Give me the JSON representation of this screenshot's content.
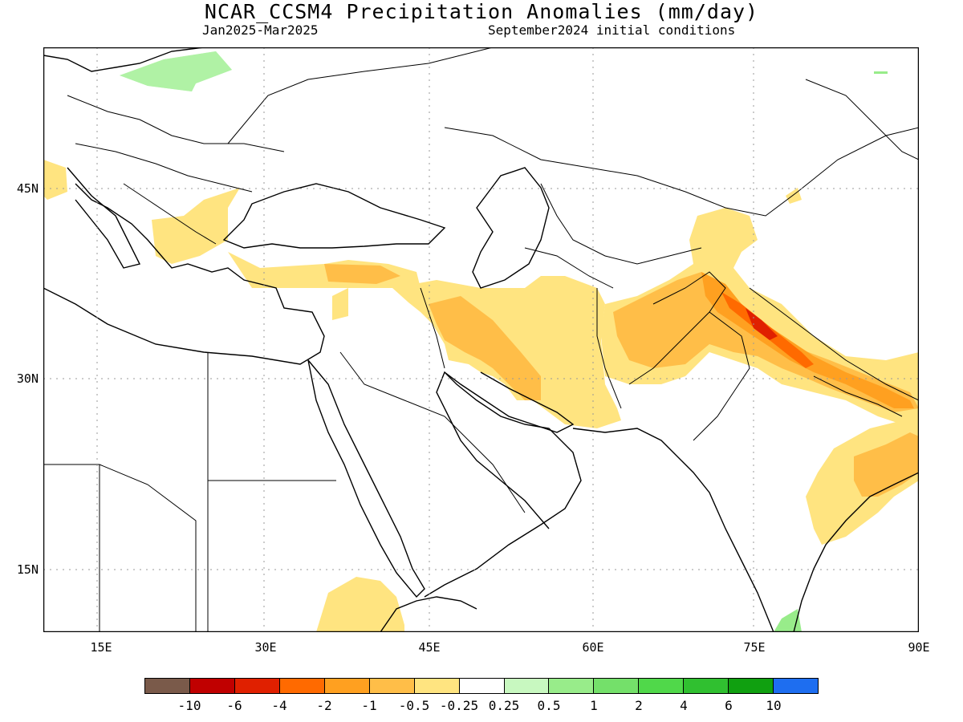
{
  "title": "NCAR_CCSM4 Precipitation Anomalies (mm/day)",
  "subtitle_left": "Jan2025-Mar2025",
  "subtitle_right": "September2024 initial conditions",
  "lat_labels": [
    "45N",
    "30N",
    "15N"
  ],
  "lon_labels": [
    "15E",
    "30E",
    "45E",
    "60E",
    "75E",
    "90E"
  ],
  "legend": {
    "labels": [
      "-10",
      "-6",
      "-4",
      "-2",
      "-1",
      "-0.5",
      "-0.25",
      "0.25",
      "0.5",
      "1",
      "2",
      "4",
      "6",
      "10"
    ],
    "colors": [
      "#7a5a4a",
      "#c00000",
      "#e02000",
      "#ff6a00",
      "#ffa020",
      "#ffbe48",
      "#ffe480",
      "#ffffff",
      "#c8f8c0",
      "#98ec8a",
      "#74e06a",
      "#50d84a",
      "#30c030",
      "#10a010",
      "#1e6ef0"
    ]
  },
  "colors": {
    "light_yellow": "#ffe480",
    "light_orange": "#ffbe48",
    "orange": "#ffa020",
    "dark_orange": "#ff6a00",
    "red": "#e02000",
    "dark_red": "#c00000",
    "light_green": "#98ec8a",
    "pale_green": "#c8f8c0"
  }
}
